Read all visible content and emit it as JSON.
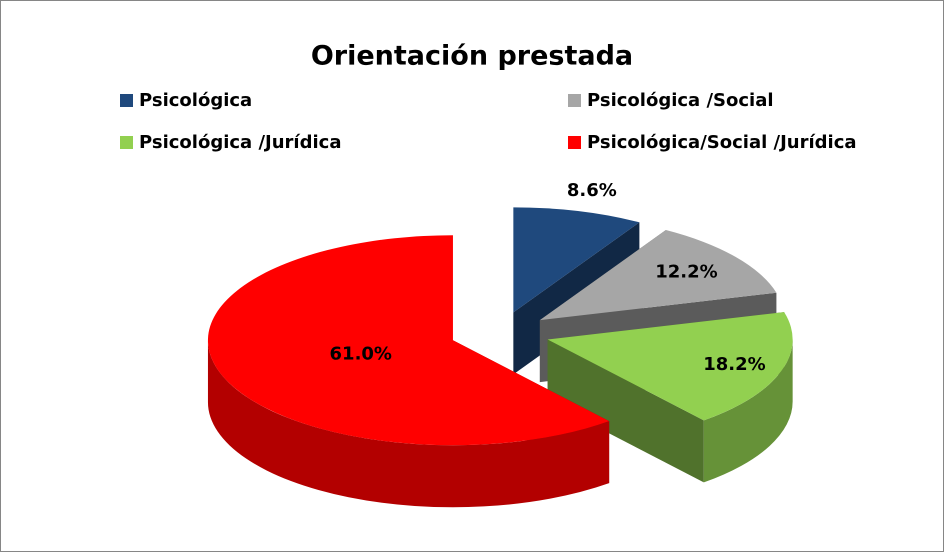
{
  "chart_data": {
    "type": "pie3d",
    "title": "Orientación prestada",
    "categories": [
      "Psicológica",
      "Psicológica /Social",
      "Psicológica /Jurídica",
      "Psicológica/Social /Jurídica"
    ],
    "values": [
      8.6,
      12.2,
      18.2,
      61.0
    ],
    "value_labels": [
      "8.6%",
      "12.2%",
      "18.2%",
      "61.0%"
    ],
    "colors": [
      "#1f497d",
      "#a6a6a6",
      "#92d050",
      "#ff0000"
    ],
    "legend": "top"
  }
}
